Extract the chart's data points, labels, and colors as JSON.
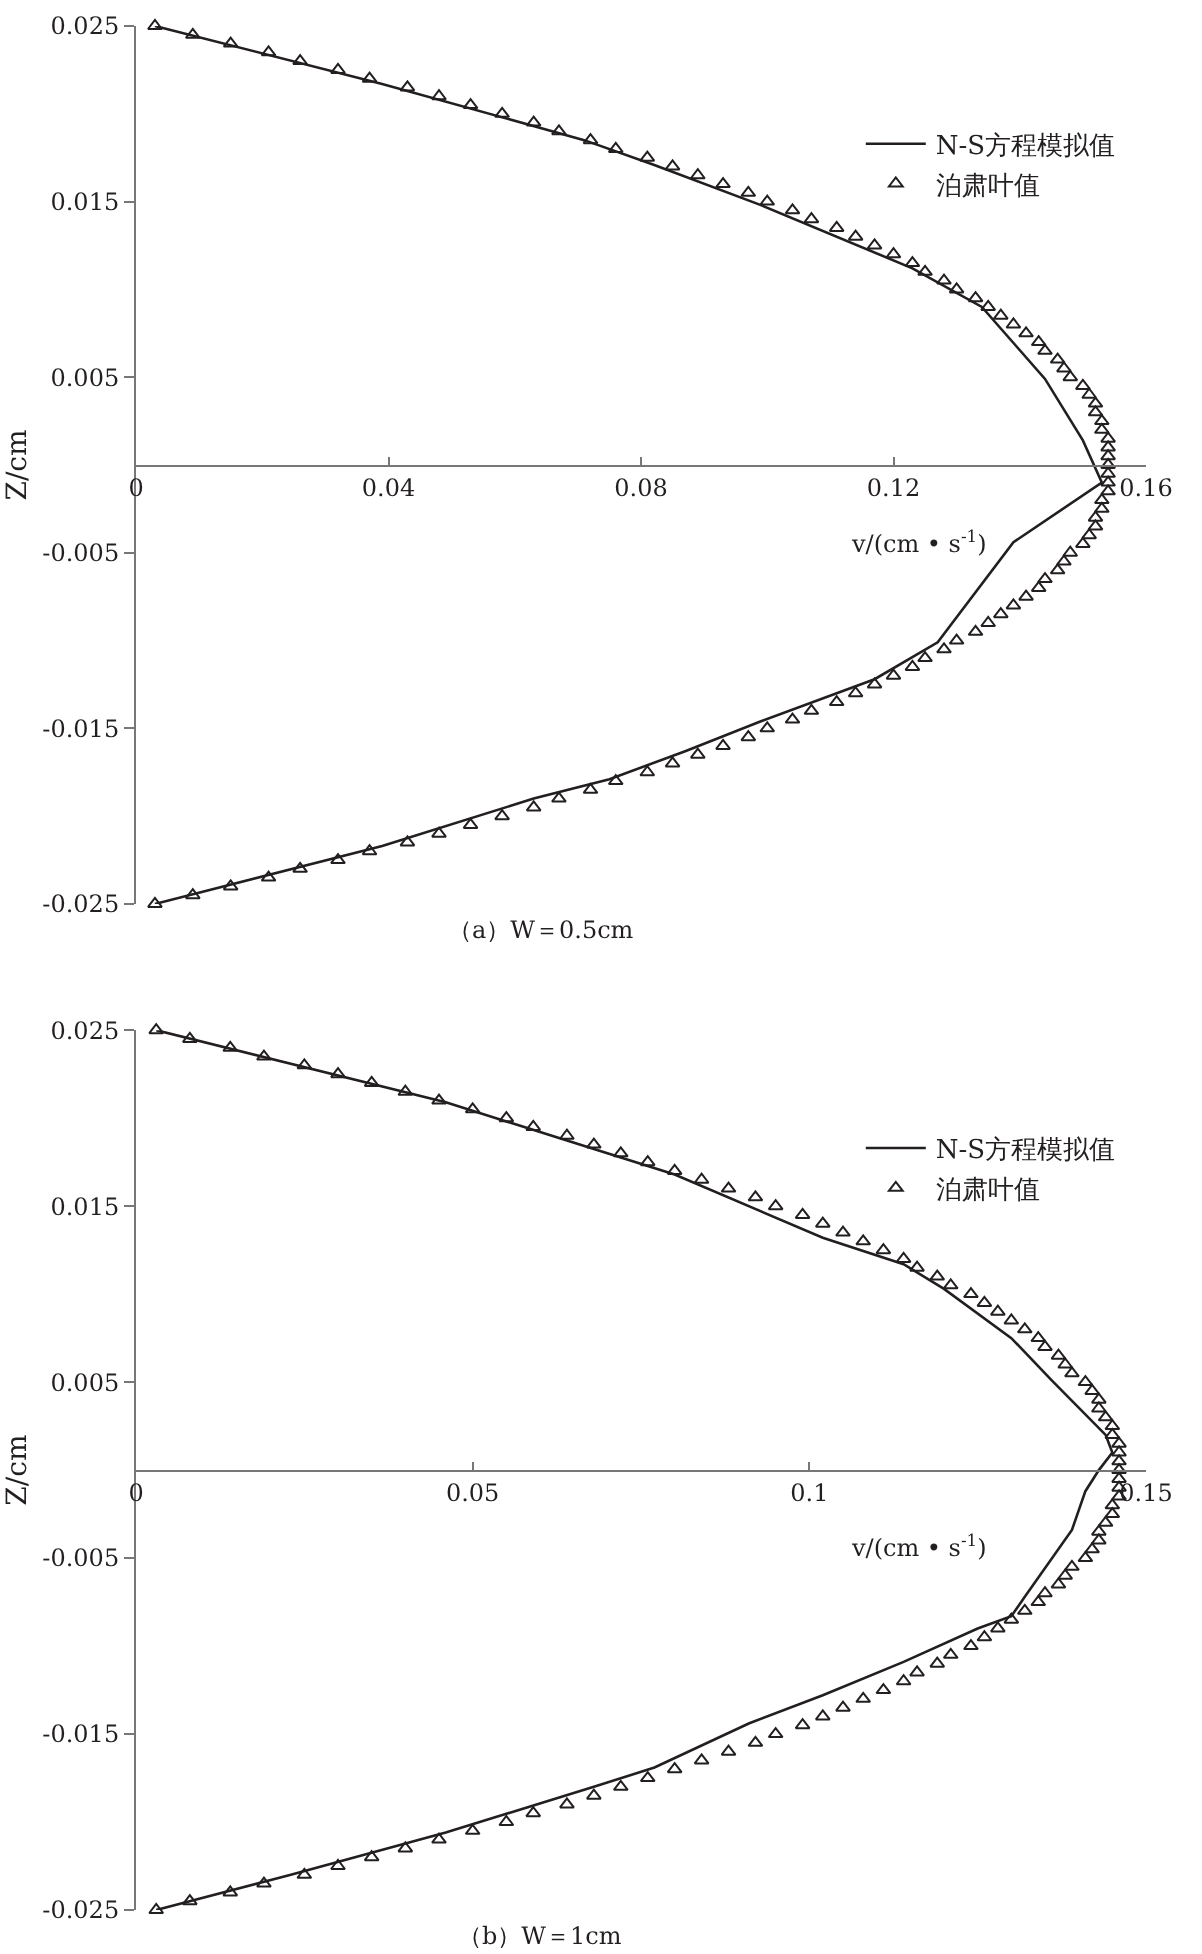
{
  "chart_data": [
    {
      "type": "line",
      "xlabel": "v/(cm • s$^{-1}$)",
      "ylabel": "Z/cm",
      "annotations": [
        "（a）W＝0.5cm"
      ],
      "xlim": [
        0,
        0.16
      ],
      "xticks": [
        0,
        0.04,
        0.08,
        0.12,
        0.16
      ],
      "ylim": [
        -0.025,
        0.025
      ],
      "yticks": [
        -0.025,
        -0.015,
        -0.005,
        0.005,
        0.015,
        0.025
      ],
      "legend": "top right",
      "series": [
        {
          "name": "N-S方程模拟值",
          "color": "#231f20",
          "marker": "none",
          "line_style": "solid",
          "x": [
            0.003,
            0.039,
            0.071,
            0.082,
            0.099,
            0.123,
            0.134,
            0.144,
            0.15,
            0.153,
            0.139,
            0.127,
            0.117,
            0.099,
            0.087,
            0.075,
            0.063,
            0.039,
            0.003
          ],
          "values": [
            0.025,
            0.0217,
            0.0185,
            0.0171,
            0.0148,
            0.0112,
            0.009,
            0.0049,
            0.0014,
            -0.001,
            -0.0044,
            -0.0101,
            -0.0122,
            -0.0146,
            -0.0163,
            -0.0179,
            -0.019,
            -0.0217,
            -0.025
          ]
        },
        {
          "name": "泊肃叶值",
          "color": "#231f20",
          "type": "scatter",
          "marker": "triangle",
          "x": [
            0.003,
            0.009,
            0.015,
            0.021,
            0.026,
            0.032,
            0.037,
            0.043,
            0.048,
            0.053,
            0.058,
            0.063,
            0.067,
            0.072,
            0.076,
            0.081,
            0.085,
            0.089,
            0.093,
            0.097,
            0.1,
            0.104,
            0.107,
            0.111,
            0.114,
            0.117,
            0.12,
            0.123,
            0.125,
            0.128,
            0.13,
            0.133,
            0.135,
            0.137,
            0.139,
            0.141,
            0.143,
            0.144,
            0.146,
            0.147,
            0.148,
            0.15,
            0.151,
            0.152,
            0.152,
            0.153,
            0.153,
            0.154,
            0.154,
            0.154,
            0.154,
            0.154,
            0.154,
            0.154,
            0.153,
            0.153,
            0.152,
            0.152,
            0.151,
            0.15,
            0.148,
            0.147,
            0.146,
            0.144,
            0.143,
            0.141,
            0.139,
            0.137,
            0.135,
            0.133,
            0.13,
            0.128,
            0.125,
            0.123,
            0.12,
            0.117,
            0.114,
            0.111,
            0.107,
            0.104,
            0.1,
            0.097,
            0.093,
            0.089,
            0.085,
            0.081,
            0.076,
            0.072,
            0.067,
            0.063,
            0.058,
            0.053,
            0.048,
            0.043,
            0.037,
            0.032,
            0.026,
            0.021,
            0.015,
            0.009,
            0.003
          ],
          "values": [
            0.025,
            0.0245,
            0.024,
            0.0235,
            0.023,
            0.0225,
            0.022,
            0.0215,
            0.021,
            0.0205,
            0.02,
            0.0195,
            0.019,
            0.0185,
            0.018,
            0.0175,
            0.017,
            0.0165,
            0.016,
            0.0155,
            0.015,
            0.0145,
            0.014,
            0.0135,
            0.013,
            0.0125,
            0.012,
            0.0115,
            0.011,
            0.0105,
            0.01,
            0.0095,
            0.009,
            0.0085,
            0.008,
            0.0075,
            0.007,
            0.0065,
            0.006,
            0.0055,
            0.005,
            0.0045,
            0.004,
            0.0035,
            0.003,
            0.0025,
            0.002,
            0.0015,
            0.001,
            0.0005,
            0,
            -0.0005,
            -0.001,
            -0.0015,
            -0.002,
            -0.0025,
            -0.003,
            -0.0035,
            -0.004,
            -0.0045,
            -0.005,
            -0.0055,
            -0.006,
            -0.0065,
            -0.007,
            -0.0075,
            -0.008,
            -0.0085,
            -0.009,
            -0.0095,
            -0.01,
            -0.0105,
            -0.011,
            -0.0115,
            -0.012,
            -0.0125,
            -0.013,
            -0.0135,
            -0.014,
            -0.0145,
            -0.015,
            -0.0155,
            -0.016,
            -0.0165,
            -0.017,
            -0.0175,
            -0.018,
            -0.0185,
            -0.019,
            -0.0195,
            -0.02,
            -0.0205,
            -0.021,
            -0.0215,
            -0.022,
            -0.0225,
            -0.023,
            -0.0235,
            -0.024,
            -0.0245,
            -0.025
          ]
        }
      ]
    },
    {
      "type": "line",
      "xlabel": "v/(cm • s$^{-1}$)",
      "ylabel": "Z/cm",
      "annotations": [
        "（b）W＝1cm"
      ],
      "xlim": [
        0,
        0.15
      ],
      "xticks": [
        0,
        0.05,
        0.1,
        0.15
      ],
      "ylim": [
        -0.025,
        0.025
      ],
      "yticks": [
        -0.025,
        -0.015,
        -0.005,
        0.005,
        0.015,
        0.025
      ],
      "legend": "top right",
      "series": [
        {
          "name": "N-S方程模拟值",
          "color": "#231f20",
          "marker": "none",
          "line_style": "solid",
          "x": [
            0.003,
            0.046,
            0.08,
            0.102,
            0.114,
            0.12,
            0.13,
            0.136,
            0.144,
            0.145,
            0.143,
            0.141,
            0.139,
            0.132,
            0.13,
            0.125,
            0.114,
            0.102,
            0.091,
            0.077,
            0.068,
            0.046,
            0.023,
            0.003
          ],
          "values": [
            0.025,
            0.0209,
            0.0168,
            0.0132,
            0.0117,
            0.0103,
            0.0075,
            0.0051,
            0.002,
            0.001,
            0,
            -0.0012,
            -0.0034,
            -0.0072,
            -0.0083,
            -0.009,
            -0.0109,
            -0.0128,
            -0.0144,
            -0.0169,
            -0.018,
            -0.0206,
            -0.023,
            -0.025
          ]
        },
        {
          "name": "泊肃叶值",
          "color": "#231f20",
          "type": "scatter",
          "marker": "triangle",
          "x": [
            0.003,
            0.008,
            0.014,
            0.019,
            0.025,
            0.03,
            0.035,
            0.04,
            0.045,
            0.05,
            0.055,
            0.059,
            0.064,
            0.068,
            0.072,
            0.076,
            0.08,
            0.084,
            0.088,
            0.092,
            0.095,
            0.099,
            0.102,
            0.105,
            0.108,
            0.111,
            0.114,
            0.116,
            0.119,
            0.121,
            0.124,
            0.126,
            0.128,
            0.13,
            0.132,
            0.134,
            0.135,
            0.137,
            0.138,
            0.139,
            0.141,
            0.142,
            0.143,
            0.143,
            0.144,
            0.145,
            0.145,
            0.146,
            0.146,
            0.146,
            0.146,
            0.146,
            0.146,
            0.146,
            0.145,
            0.145,
            0.144,
            0.143,
            0.143,
            0.142,
            0.141,
            0.139,
            0.138,
            0.137,
            0.135,
            0.134,
            0.132,
            0.13,
            0.128,
            0.126,
            0.124,
            0.121,
            0.119,
            0.116,
            0.114,
            0.111,
            0.108,
            0.105,
            0.102,
            0.099,
            0.095,
            0.092,
            0.088,
            0.084,
            0.08,
            0.076,
            0.072,
            0.068,
            0.064,
            0.059,
            0.055,
            0.05,
            0.045,
            0.04,
            0.035,
            0.03,
            0.025,
            0.019,
            0.014,
            0.008,
            0.003
          ],
          "values": [
            0.025,
            0.0245,
            0.024,
            0.0235,
            0.023,
            0.0225,
            0.022,
            0.0215,
            0.021,
            0.0205,
            0.02,
            0.0195,
            0.019,
            0.0185,
            0.018,
            0.0175,
            0.017,
            0.0165,
            0.016,
            0.0155,
            0.015,
            0.0145,
            0.014,
            0.0135,
            0.013,
            0.0125,
            0.012,
            0.0115,
            0.011,
            0.0105,
            0.01,
            0.0095,
            0.009,
            0.0085,
            0.008,
            0.0075,
            0.007,
            0.0065,
            0.006,
            0.0055,
            0.005,
            0.0045,
            0.004,
            0.0035,
            0.003,
            0.0025,
            0.002,
            0.0015,
            0.001,
            0.0005,
            0,
            -0.0005,
            -0.001,
            -0.0015,
            -0.002,
            -0.0025,
            -0.003,
            -0.0035,
            -0.004,
            -0.0045,
            -0.005,
            -0.0055,
            -0.006,
            -0.0065,
            -0.007,
            -0.0075,
            -0.008,
            -0.0085,
            -0.009,
            -0.0095,
            -0.01,
            -0.0105,
            -0.011,
            -0.0115,
            -0.012,
            -0.0125,
            -0.013,
            -0.0135,
            -0.014,
            -0.0145,
            -0.015,
            -0.0155,
            -0.016,
            -0.0165,
            -0.017,
            -0.0175,
            -0.018,
            -0.0185,
            -0.019,
            -0.0195,
            -0.02,
            -0.0205,
            -0.021,
            -0.0215,
            -0.022,
            -0.0225,
            -0.023,
            -0.0235,
            -0.024,
            -0.0245,
            -0.025
          ]
        }
      ]
    }
  ]
}
